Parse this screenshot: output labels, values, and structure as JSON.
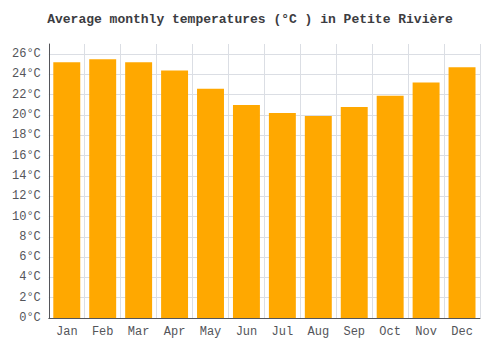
{
  "chart_data": {
    "type": "bar",
    "title": "Average monthly temperatures (°C ) in Petite Rivière",
    "categories": [
      "Jan",
      "Feb",
      "Mar",
      "Apr",
      "May",
      "Jun",
      "Jul",
      "Aug",
      "Sep",
      "Oct",
      "Nov",
      "Dec"
    ],
    "values": [
      25.2,
      25.5,
      25.2,
      24.4,
      22.6,
      21.0,
      20.2,
      19.9,
      20.8,
      21.9,
      23.2,
      24.7
    ],
    "color": "#FFA800",
    "ylim": [
      0,
      27
    ],
    "yticks": [
      {
        "value": 0,
        "label": "0°C"
      },
      {
        "value": 2,
        "label": "2°C"
      },
      {
        "value": 4,
        "label": "4°C"
      },
      {
        "value": 6,
        "label": "6°C"
      },
      {
        "value": 8,
        "label": "8°C"
      },
      {
        "value": 10,
        "label": "10°C"
      },
      {
        "value": 12,
        "label": "12°C"
      },
      {
        "value": 14,
        "label": "14°C"
      },
      {
        "value": 16,
        "label": "16°C"
      },
      {
        "value": 18,
        "label": "18°C"
      },
      {
        "value": 20,
        "label": "20°C"
      },
      {
        "value": 22,
        "label": "22°C"
      },
      {
        "value": 24,
        "label": "24°C"
      },
      {
        "value": 26,
        "label": "26°C"
      }
    ],
    "grid": true
  }
}
